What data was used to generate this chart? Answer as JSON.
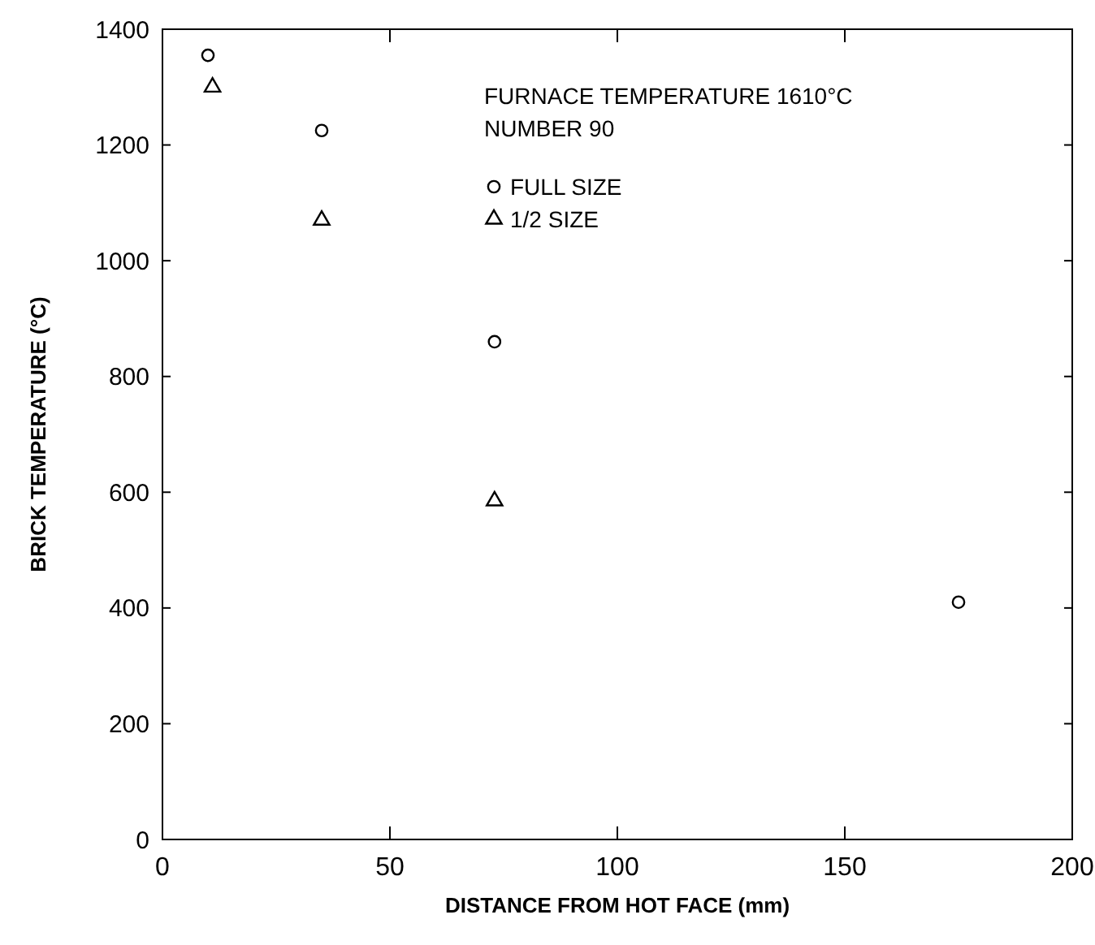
{
  "chart_data": {
    "type": "scatter",
    "xlabel": "DISTANCE FROM HOT FACE (mm)",
    "ylabel": "BRICK TEMPERATURE (°C)",
    "xlim": [
      0,
      200
    ],
    "xticks": [
      0,
      50,
      100,
      150,
      200
    ],
    "ylim": [
      0,
      1400
    ],
    "yticks": [
      0,
      200,
      400,
      600,
      800,
      1000,
      1200,
      1400
    ],
    "annotations": [
      "FURNACE TEMPERATURE 1610°C",
      "NUMBER 90"
    ],
    "legend": "top",
    "grid": false,
    "series": [
      {
        "name": "FULL SIZE",
        "color": "#000000",
        "marker": "circle",
        "x": [
          10,
          35,
          73,
          175
        ],
        "values": [
          1355,
          1225,
          860,
          410
        ]
      },
      {
        "name": "1/2 SIZE",
        "color": "#000000",
        "marker": "triangle",
        "x": [
          11,
          35,
          73
        ],
        "values": [
          1300,
          1070,
          585
        ]
      }
    ]
  }
}
